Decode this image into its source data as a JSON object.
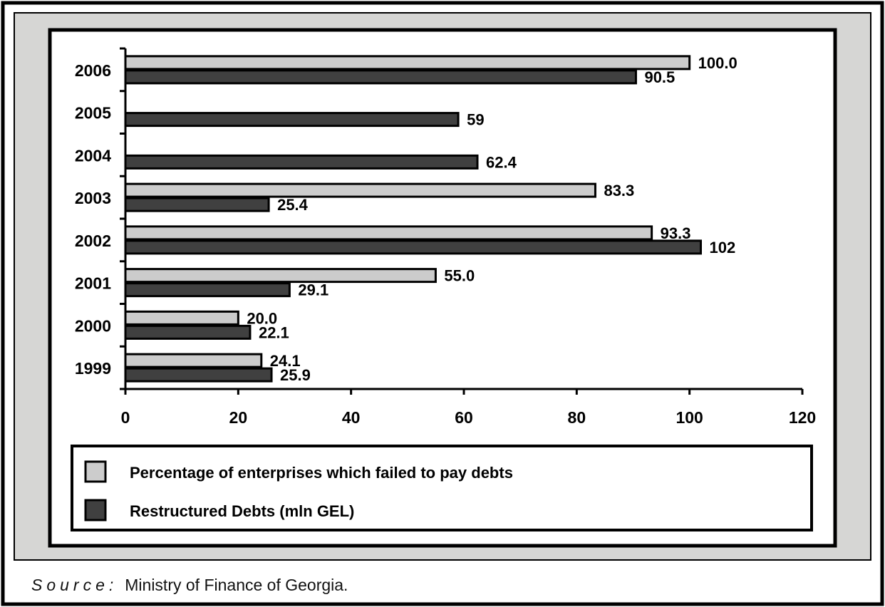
{
  "chart_data": {
    "type": "bar",
    "orientation": "horizontal",
    "categories": [
      "1999",
      "2000",
      "2001",
      "2002",
      "2003",
      "2004",
      "2005",
      "2006"
    ],
    "series": [
      {
        "name": "Percentage of enterprises which failed to pay debts",
        "color": "#cccccc",
        "values": [
          24.1,
          20.0,
          55.0,
          93.3,
          83.3,
          null,
          null,
          100.0
        ],
        "labels": [
          "24.1",
          "20.0",
          "55.0",
          "93.3",
          "83.3",
          "",
          "",
          "100.0"
        ]
      },
      {
        "name": "Restructured Debts (mln GEL)",
        "color": "#404040",
        "values": [
          25.9,
          22.1,
          29.1,
          102,
          25.4,
          62.4,
          59,
          90.5
        ],
        "labels": [
          "25.9",
          "22.1",
          "29.1",
          "102",
          "25.4",
          "62.4",
          "59",
          "90.5"
        ]
      }
    ],
    "xlim": [
      0,
      120
    ],
    "xticks": [
      "0",
      "20",
      "40",
      "60",
      "80",
      "100",
      "120"
    ],
    "grid": false,
    "legend_position": "bottom",
    "title": "",
    "xlabel": "",
    "ylabel": ""
  },
  "source": {
    "label": "Source:",
    "text": "Ministry of Finance of Georgia."
  }
}
